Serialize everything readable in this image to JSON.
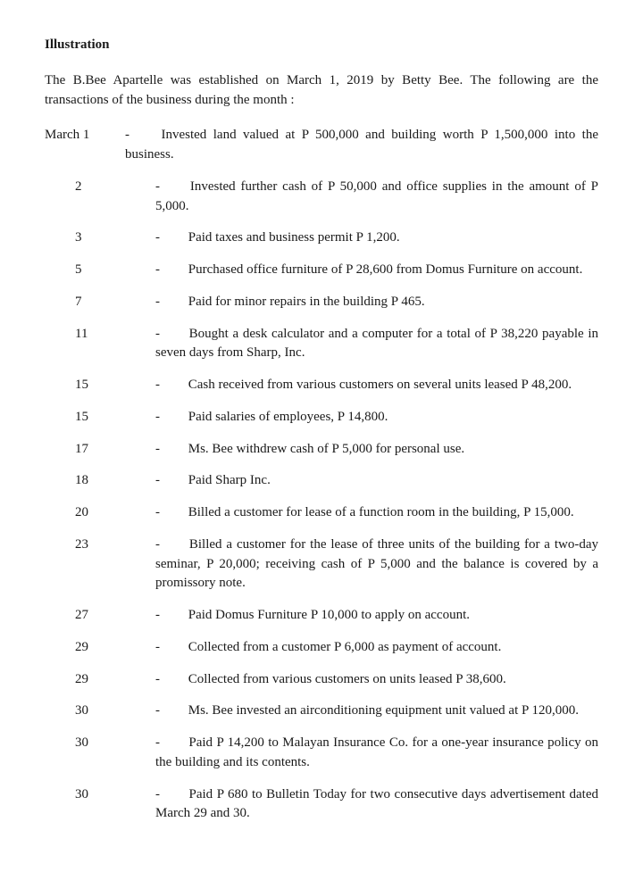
{
  "heading": "Illustration",
  "intro": "The B.Bee Apartelle was established on March 1, 2019 by Betty Bee.  The following are the transactions of the business during the month :",
  "first_date_label": "March 1",
  "entries": [
    {
      "date": "March 1",
      "text": "Invested land valued at P 500,000 and building worth P 1,500,000 into the business."
    },
    {
      "date": "2",
      "text": "Invested further cash of P 50,000 and office supplies in the amount of P 5,000."
    },
    {
      "date": "3",
      "text": "Paid taxes and business permit P 1,200."
    },
    {
      "date": "5",
      "text": "Purchased office furniture of P 28,600 from Domus Furniture on account."
    },
    {
      "date": "7",
      "text": "Paid for minor repairs in the building P 465."
    },
    {
      "date": "11",
      "text": "Bought a desk calculator and a computer for a total of P 38,220 payable in seven days from Sharp, Inc."
    },
    {
      "date": "15",
      "text": "Cash received from various customers on several units leased P 48,200."
    },
    {
      "date": "15",
      "text": "Paid salaries of employees, P 14,800."
    },
    {
      "date": "17",
      "text": "Ms. Bee withdrew cash of P 5,000 for personal use."
    },
    {
      "date": "18",
      "text": "Paid Sharp Inc."
    },
    {
      "date": "20",
      "text": "Billed a customer for lease of a function room in the building, P 15,000."
    },
    {
      "date": "23",
      "text": "Billed a customer for the lease of three units of the building for a two-day seminar, P 20,000;   receiving cash of P 5,000 and the balance is covered by a promissory note."
    },
    {
      "date": "27",
      "text": "Paid Domus Furniture P 10,000 to apply on account."
    },
    {
      "date": "29",
      "text": "Collected from a customer P 6,000 as payment of account."
    },
    {
      "date": "29",
      "text": "Collected from various customers on units leased P 38,600."
    },
    {
      "date": "30",
      "text": "Ms. Bee invested an airconditioning equipment unit valued at P 120,000."
    },
    {
      "date": "30",
      "text": "Paid P 14,200 to Malayan Insurance Co. for a one-year insurance policy on the building and its contents."
    },
    {
      "date": "30",
      "text": "Paid P 680 to Bulletin Today for two consecutive days advertisement dated March 29 and 30."
    }
  ],
  "dash": "-"
}
